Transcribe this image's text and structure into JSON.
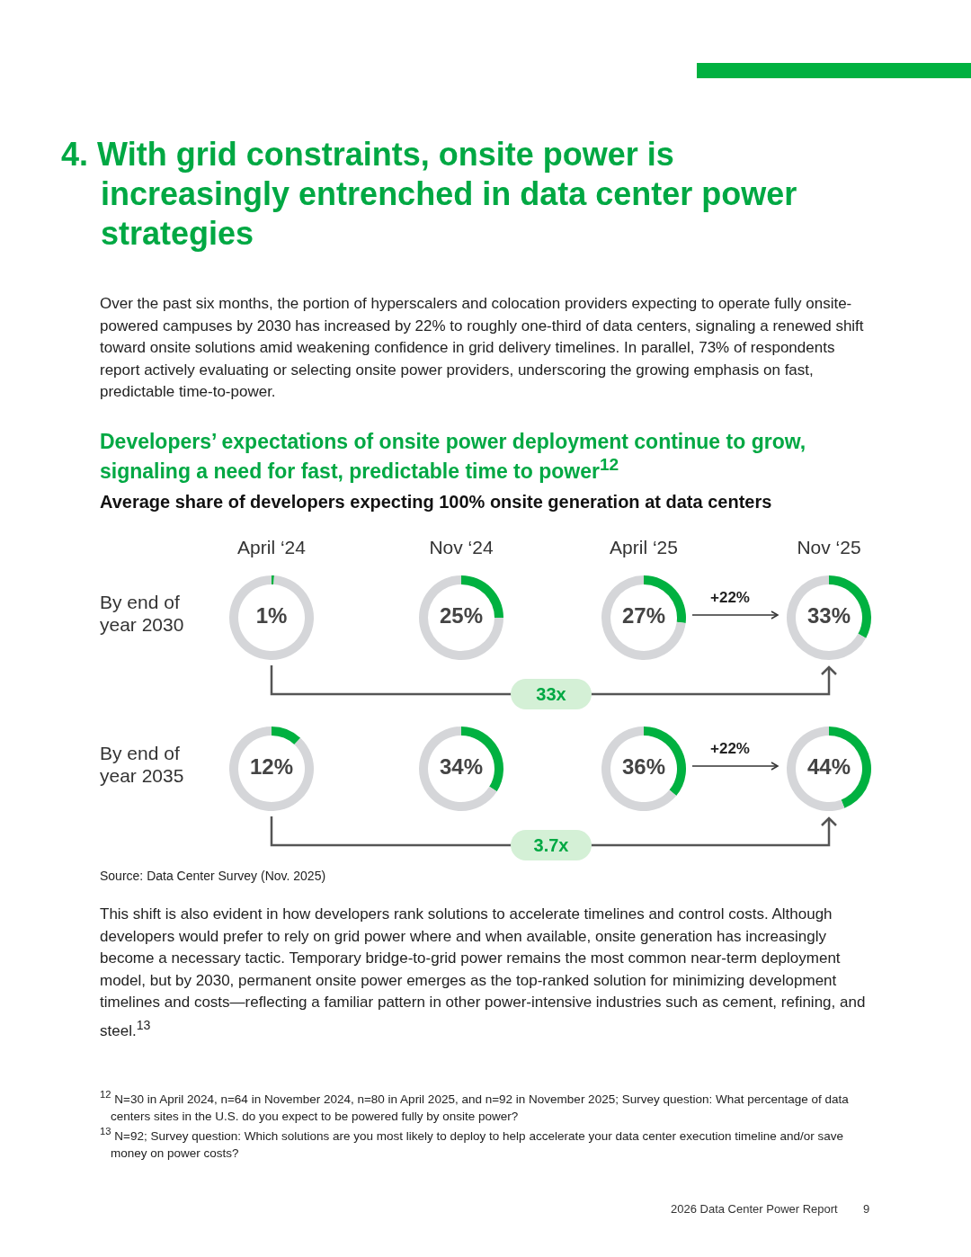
{
  "chart_data": [
    {
      "type": "other",
      "title": "4. With grid constraints, onsite power is increasingly entrenched in data center power strategies",
      "annotations": [
        "Over the past six months, the portion of hyperscalers and colocation providers expecting to operate fully onsite-powered campuses by 2030 has increased by 22% to roughly one-third of data centers, signaling a renewed shift toward onsite solutions amid weakening confidence in grid delivery timelines. In parallel, 73% of respondents report actively evaluating or selecting onsite power providers, underscoring the growing emphasis on fast, predictable time-to-power."
      ]
    },
    {
      "type": "other",
      "title": "Developers’ expectations of onsite power deployment continue to grow, signaling a need for fast, predictable time to power$^{12}$",
      "subtitle": "Average share of developers expecting 100% onsite generation at data centers"
    },
    {
      "type": "donut",
      "title": "April ‘24",
      "categories": [
        null,
        null
      ],
      "values": [
        1,
        99
      ],
      "colors": [
        "#00b140",
        "#d5d6d9"
      ],
      "value_labels": [
        "1%",
        null
      ],
      "annotations": [
        "By end of year 2030"
      ]
    },
    {
      "type": "donut",
      "title": "Nov ‘24",
      "categories": [
        null,
        null
      ],
      "values": [
        25,
        75
      ],
      "colors": [
        "#00b140",
        "#d5d6d9"
      ],
      "value_labels": [
        "25%",
        null
      ]
    },
    {
      "type": "donut",
      "title": "April ‘25",
      "categories": [
        null,
        null
      ],
      "values": [
        27,
        73
      ],
      "colors": [
        "#00b140",
        "#d5d6d9"
      ],
      "value_labels": [
        "27%",
        null
      ]
    },
    {
      "type": "donut",
      "title": "Nov ‘25",
      "categories": [
        null,
        null
      ],
      "values": [
        33,
        67
      ],
      "colors": [
        "#00b140",
        "#d5d6d9"
      ],
      "value_labels": [
        "33%",
        null
      ],
      "annotations": [
        "+22%",
        "33x"
      ]
    },
    {
      "type": "donut",
      "categories": [
        null,
        null
      ],
      "values": [
        12,
        88
      ],
      "colors": [
        "#00b140",
        "#d5d6d9"
      ],
      "value_labels": [
        "12%",
        null
      ],
      "annotations": [
        "By end of year 2035"
      ]
    },
    {
      "type": "donut",
      "categories": [
        null,
        null
      ],
      "values": [
        34,
        66
      ],
      "colors": [
        "#00b140",
        "#d5d6d9"
      ],
      "value_labels": [
        "34%",
        null
      ]
    },
    {
      "type": "donut",
      "categories": [
        null,
        null
      ],
      "values": [
        36,
        64
      ],
      "colors": [
        "#00b140",
        "#d5d6d9"
      ],
      "value_labels": [
        "36%",
        null
      ]
    },
    {
      "type": "donut",
      "categories": [
        null,
        null
      ],
      "values": [
        44,
        56
      ],
      "colors": [
        "#00b140",
        "#d5d6d9"
      ],
      "value_labels": [
        "44%",
        null
      ],
      "annotations": [
        "+22%",
        "3.7x"
      ]
    },
    {
      "type": "other",
      "annotations": [
        "Source: Data Center Survey (Nov. 2025)",
        "This shift is also evident in how developers rank solutions to accelerate timelines and control costs. Although developers would prefer to rely on grid power where and when available, onsite generation has increasingly become a necessary tactic. Temporary bridge-to-grid power remains the most common near-term deployment model, but by 2030, permanent onsite power emerges as the top-ranked solution for minimizing development timelines and costs—reflecting a familiar pattern in other power-intensive industries such as cement, refining, and steel.$^{13}$",
        "$^{12}$ N=30 in April 2024, n=64 in November 2024, n=80 in April 2025, and n=92 in November 2025; Survey question: What percentage of data centers sites in the U.S. do you expect to be powered fully by onsite power?",
        "$^{13}$ N=92; Survey question: Which solutions are you most likely to deploy to help accelerate your data center execution timeline and/or save money on power costs?",
        "2026 Data Center Power Report",
        "9"
      ]
    }
  ]
}
